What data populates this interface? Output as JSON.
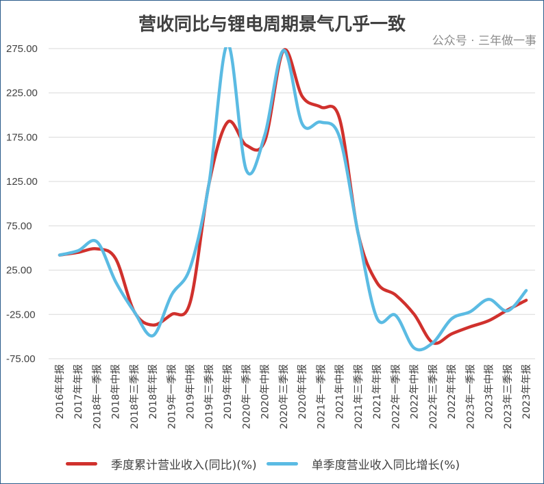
{
  "chart_data": {
    "type": "line",
    "title": "营收同比与锂电周期景气几乎一致",
    "xlabel": "",
    "ylabel": "",
    "ylim": [
      -75,
      275
    ],
    "yticks": [
      "275.00",
      "225.00",
      "175.00",
      "125.00",
      "75.00",
      "25.00",
      "-25.00",
      "-75.00"
    ],
    "ytick_values": [
      275,
      225,
      175,
      125,
      75,
      25,
      -25,
      -75
    ],
    "grid": true,
    "legend_position": "bottom",
    "categories": [
      "2016年年报",
      "2017年年报",
      "2018年一季报",
      "2018年中报",
      "2018年三季报",
      "2018年年报",
      "2019年一季报",
      "2019年中报",
      "2019年三季报",
      "2019年年报",
      "2020年一季报",
      "2020年中报",
      "2020年三季报",
      "2020年年报",
      "2021年一季报",
      "2021年中报",
      "2021年三季报",
      "2021年年报",
      "2022年一季报",
      "2022年中报",
      "2022年三季报",
      "2022年年报",
      "2023年一季报",
      "2023年中报",
      "2023年三季报",
      "2023年年报"
    ],
    "series": [
      {
        "name": "季度累计营业收入(同比)(%)",
        "color": "#d0312d",
        "values": [
          42,
          45,
          49,
          38,
          -22,
          -37,
          -25,
          -11,
          122,
          192,
          166,
          171,
          273,
          221,
          209,
          196,
          66,
          11,
          -3,
          -25,
          -57,
          -47,
          -39,
          -32,
          -20,
          -9
        ]
      },
      {
        "name": "单季度营业收入同比增长(%)",
        "color": "#5bbbe3",
        "values": [
          42,
          47,
          57,
          12,
          -22,
          -49,
          -3,
          28,
          122,
          280,
          138,
          178,
          273,
          190,
          192,
          175,
          66,
          -29,
          -26,
          -63,
          -57,
          -30,
          -22,
          -8,
          -21,
          2
        ]
      }
    ]
  },
  "watermark": "公众号 · 三年做一事"
}
